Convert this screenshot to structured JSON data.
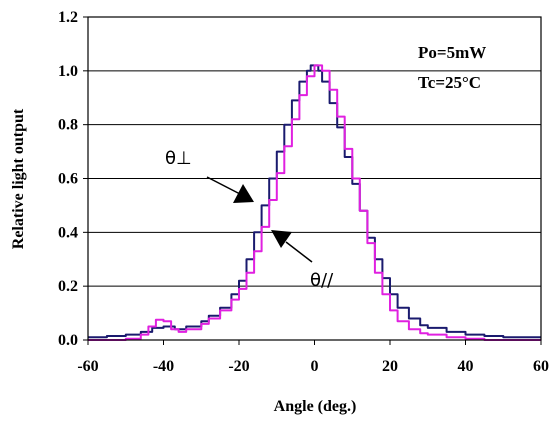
{
  "chart_data": {
    "type": "line",
    "xlabel": "Angle (deg.)",
    "ylabel": "Relative light output",
    "xlim": [
      -60,
      60
    ],
    "ylim": [
      0,
      1.2
    ],
    "xticks": [
      "-60",
      "-40",
      "-20",
      "0",
      "20",
      "40",
      "60"
    ],
    "yticks": [
      "0.0",
      "0.2",
      "0.4",
      "0.6",
      "0.8",
      "1.0",
      "1.2"
    ],
    "grid": "horizontal",
    "annotations": {
      "po": "Po=5mW",
      "tc": "Tc=25°C",
      "perp": "θ⊥",
      "para": "θ//"
    },
    "series": [
      {
        "name": "θ⊥",
        "color": "#1a1a6e",
        "x": [
          -60,
          -55,
          -50,
          -46,
          -43,
          -40,
          -37,
          -34,
          -30,
          -28,
          -25,
          -22,
          -20,
          -18,
          -16,
          -14,
          -12,
          -10,
          -8,
          -6,
          -4,
          -2,
          -1,
          0,
          1,
          2,
          4,
          6,
          8,
          10,
          12,
          14,
          16,
          18,
          20,
          22,
          25,
          28,
          30,
          35,
          40,
          45,
          50,
          55,
          60
        ],
        "y": [
          0.01,
          0.015,
          0.02,
          0.03,
          0.045,
          0.05,
          0.04,
          0.05,
          0.07,
          0.09,
          0.12,
          0.17,
          0.22,
          0.3,
          0.4,
          0.5,
          0.6,
          0.7,
          0.8,
          0.89,
          0.96,
          1.0,
          1.02,
          1.02,
          1.0,
          0.96,
          0.88,
          0.79,
          0.68,
          0.58,
          0.48,
          0.38,
          0.3,
          0.23,
          0.17,
          0.12,
          0.08,
          0.055,
          0.045,
          0.03,
          0.02,
          0.015,
          0.01,
          0.01,
          0.01
        ]
      },
      {
        "name": "θ//",
        "color": "#e020e0",
        "x": [
          -60,
          -55,
          -50,
          -46,
          -44,
          -42,
          -40,
          -38,
          -36,
          -34,
          -30,
          -28,
          -25,
          -22,
          -20,
          -18,
          -16,
          -14,
          -12,
          -10,
          -8,
          -6,
          -4,
          -2,
          0,
          1,
          2,
          4,
          6,
          8,
          10,
          12,
          14,
          16,
          18,
          20,
          22,
          25,
          28,
          30,
          35,
          40,
          45,
          50,
          55,
          60
        ],
        "y": [
          0.0,
          0.0,
          0.005,
          0.02,
          0.05,
          0.075,
          0.07,
          0.04,
          0.03,
          0.04,
          0.06,
          0.08,
          0.11,
          0.15,
          0.19,
          0.25,
          0.33,
          0.42,
          0.52,
          0.62,
          0.72,
          0.82,
          0.91,
          0.98,
          1.02,
          1.02,
          1.0,
          0.93,
          0.83,
          0.71,
          0.6,
          0.48,
          0.36,
          0.25,
          0.17,
          0.11,
          0.07,
          0.04,
          0.025,
          0.02,
          0.01,
          0.005,
          0.0,
          0.0,
          0.0,
          0.0
        ]
      }
    ]
  }
}
